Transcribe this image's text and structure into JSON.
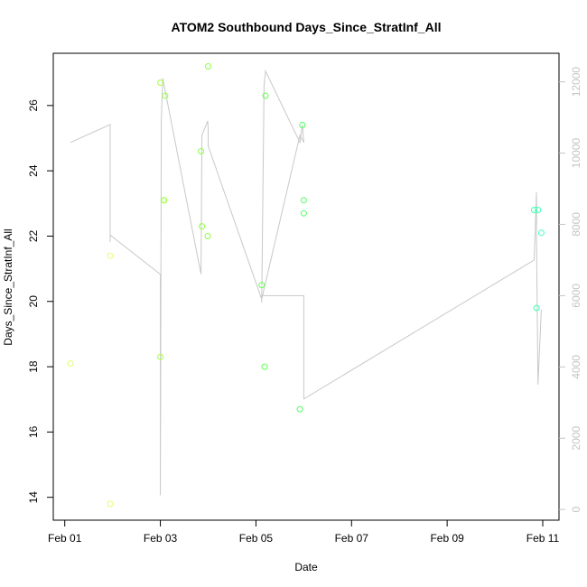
{
  "chart_data": {
    "type": "scatter",
    "title": "ATOM2 Southbound Days_Since_StratInf_All",
    "xlabel": "Date",
    "ylabel": "Days_Since_StratInf_All",
    "x_ticks": [
      "Feb 01",
      "Feb 03",
      "Feb 05",
      "Feb 07",
      "Feb 09",
      "Feb 11"
    ],
    "x_tick_values": [
      1,
      3,
      5,
      7,
      9,
      11
    ],
    "xlim": [
      0.76,
      11.34
    ],
    "ylim": [
      13.3,
      27.6
    ],
    "y_ticks": [
      14,
      16,
      18,
      20,
      22,
      24,
      26
    ],
    "y2lim": [
      -300,
      12800
    ],
    "y2_ticks": [
      0,
      2000,
      4000,
      6000,
      8000,
      10000,
      12000
    ],
    "grid": false,
    "legend": "none",
    "colors": {
      "line": "#c8c8c8",
      "frame": "#000000",
      "right_axis": "#c4c4c4"
    },
    "series": [
      {
        "kind": "points",
        "axis": "left",
        "x": [
          1.12,
          1.95,
          1.95,
          3.0,
          3.0,
          3.07,
          3.1,
          3.08,
          3.85,
          3.87,
          3.99,
          4.0,
          5.12,
          5.18,
          5.2,
          5.92,
          5.97,
          6.0,
          6.0,
          10.82,
          10.9,
          10.87,
          10.97
        ],
        "y": [
          18.1,
          21.4,
          13.8,
          26.7,
          18.3,
          23.1,
          26.3,
          23.1,
          24.6,
          22.3,
          22.0,
          27.2,
          20.5,
          18.0,
          26.3,
          16.7,
          25.4,
          23.1,
          22.7,
          22.8,
          22.8,
          19.8,
          22.1
        ],
        "colors": [
          "#e0ff70",
          "#e0ff70",
          "#e0ff70",
          "#a6ff40",
          "#a6ff40",
          "#98ff40",
          "#98ff40",
          "#98ff40",
          "#8cff40",
          "#8cff40",
          "#8cff40",
          "#8cff40",
          "#60ff50",
          "#60ff50",
          "#60ff50",
          "#50ff60",
          "#50ff60",
          "#50ff60",
          "#50ff60",
          "#40ffb0",
          "#40ffb0",
          "#40ffb0",
          "#40ffc0"
        ]
      },
      {
        "kind": "line",
        "axis": "right",
        "x": [
          1.12,
          1.95,
          1.95,
          1.95,
          3.0,
          3.0,
          3.02,
          3.05,
          3.85,
          3.87,
          3.99,
          4.0,
          4.0,
          5.12,
          5.12,
          5.17,
          5.2,
          5.92,
          5.97,
          6.0,
          5.92,
          5.12,
          5.12,
          6.0,
          6.0,
          10.82,
          10.87,
          10.87,
          10.9,
          10.97
        ],
        "y": [
          10300,
          10800,
          7500,
          7700,
          6600,
          400,
          10900,
          12100,
          6600,
          10500,
          10900,
          10700,
          10200,
          5900,
          5800,
          11900,
          12300,
          10300,
          10800,
          10300,
          10500,
          5900,
          6000,
          6000,
          3100,
          7000,
          8900,
          7600,
          3500,
          5600
        ]
      }
    ]
  }
}
